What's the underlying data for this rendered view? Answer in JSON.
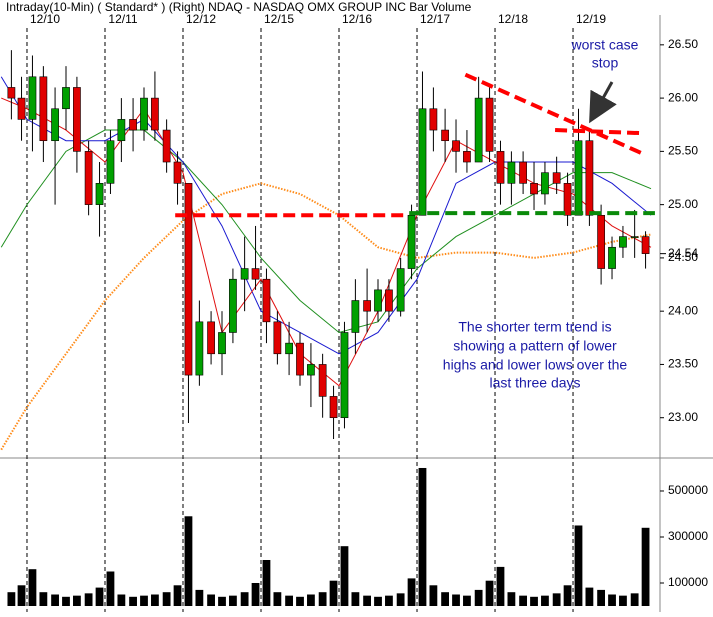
{
  "chart_data": [
    {
      "type": "candlestick",
      "title": "Intraday(10-Min) ( Standard* ) (Right) NDAQ - NASDAQ OMX GROUP INC Bar Volume",
      "xlim": [
        -0.346,
        8.115
      ],
      "xticks": [
        {
          "value": 0,
          "label": "12/10"
        },
        {
          "value": 1,
          "label": "12/11"
        },
        {
          "value": 2,
          "label": "12/12"
        },
        {
          "value": 3,
          "label": "12/15"
        },
        {
          "value": 4,
          "label": "12/16"
        },
        {
          "value": 5,
          "label": "12/17"
        },
        {
          "value": 6,
          "label": "12/18"
        },
        {
          "value": 7,
          "label": "12/19"
        }
      ],
      "ylim": [
        22.65,
        26.78
      ],
      "yticks": [
        {
          "value": 23,
          "label": "23.00"
        },
        {
          "value": 23.5,
          "label": "23.50"
        },
        {
          "value": 24,
          "label": "24.00"
        },
        {
          "value": 24.5,
          "label": "24.50"
        },
        {
          "value": 25,
          "label": "25.00"
        },
        {
          "value": 25.5,
          "label": "25.50"
        },
        {
          "value": 26,
          "label": "26.00"
        },
        {
          "value": 26.5,
          "label": "26.50"
        }
      ],
      "last_price": 24.54,
      "up_color": "#00a000",
      "down_color": "#e00000",
      "candles": {
        "x": [
          -0.2,
          -0.07,
          0.07,
          0.21,
          0.36,
          0.5,
          0.64,
          0.79,
          0.93,
          1.07,
          1.21,
          1.36,
          1.5,
          1.64,
          1.79,
          1.93,
          2.07,
          2.21,
          2.36,
          2.5,
          2.64,
          2.79,
          2.93,
          3.07,
          3.21,
          3.36,
          3.5,
          3.64,
          3.79,
          3.93,
          4.07,
          4.21,
          4.36,
          4.5,
          4.64,
          4.79,
          4.93,
          5.07,
          5.21,
          5.36,
          5.5,
          5.64,
          5.79,
          5.93,
          6.07,
          6.21,
          6.36,
          6.5,
          6.64,
          6.79,
          6.93,
          7.07,
          7.21,
          7.36,
          7.5,
          7.64,
          7.79,
          7.93
        ],
        "open": [
          26.1,
          26.0,
          25.8,
          26.2,
          25.6,
          25.9,
          26.1,
          25.5,
          25.0,
          25.2,
          25.6,
          25.8,
          25.7,
          26.0,
          25.7,
          25.4,
          25.2,
          23.4,
          23.9,
          23.6,
          23.8,
          24.3,
          24.4,
          24.3,
          23.9,
          23.6,
          23.7,
          23.4,
          23.5,
          23.2,
          23.0,
          23.8,
          24.1,
          24.0,
          24.2,
          24.0,
          24.4,
          24.9,
          25.9,
          25.7,
          25.6,
          25.5,
          25.4,
          26.0,
          25.5,
          25.2,
          25.4,
          25.2,
          25.1,
          25.3,
          25.2,
          24.9,
          25.6,
          24.9,
          24.4,
          24.6,
          24.7,
          24.7
        ],
        "high": [
          26.45,
          26.2,
          26.4,
          26.3,
          26.1,
          26.3,
          26.2,
          25.6,
          25.4,
          25.7,
          26.0,
          26.0,
          26.1,
          26.25,
          25.8,
          25.5,
          25.2,
          24.1,
          24.0,
          24.0,
          24.4,
          24.7,
          24.8,
          24.4,
          24.0,
          23.9,
          23.8,
          23.7,
          23.6,
          23.3,
          23.9,
          24.3,
          24.4,
          24.3,
          24.3,
          24.5,
          25.0,
          26.25,
          26.1,
          25.9,
          25.8,
          25.7,
          26.2,
          26.1,
          25.6,
          25.5,
          25.5,
          25.4,
          25.4,
          25.45,
          25.3,
          25.9,
          25.7,
          25.0,
          24.7,
          24.8,
          24.95,
          24.75
        ],
        "low": [
          25.8,
          25.6,
          25.5,
          25.4,
          25.0,
          25.7,
          25.3,
          24.9,
          24.7,
          25.1,
          25.4,
          25.5,
          25.6,
          25.6,
          25.3,
          25.0,
          22.95,
          23.3,
          23.5,
          23.4,
          23.7,
          24.0,
          24.2,
          23.7,
          23.5,
          23.4,
          23.3,
          23.1,
          23.0,
          22.8,
          22.9,
          23.6,
          23.8,
          23.9,
          23.9,
          23.95,
          24.3,
          24.9,
          25.5,
          25.4,
          25.3,
          25.3,
          25.4,
          25.4,
          25.0,
          25.0,
          25.1,
          24.95,
          25.0,
          25.1,
          24.8,
          24.9,
          24.8,
          24.25,
          24.3,
          24.5,
          24.5,
          24.4
        ],
        "close": [
          26.0,
          25.8,
          26.2,
          25.6,
          25.9,
          26.1,
          25.5,
          25.0,
          25.2,
          25.6,
          25.8,
          25.7,
          26.0,
          25.7,
          25.4,
          25.2,
          23.4,
          23.9,
          23.6,
          23.8,
          24.3,
          24.4,
          24.3,
          23.9,
          23.6,
          23.7,
          23.4,
          23.5,
          23.2,
          23.0,
          23.8,
          24.1,
          24.0,
          24.2,
          24.0,
          24.4,
          24.9,
          25.9,
          25.7,
          25.6,
          25.5,
          25.4,
          26.0,
          25.5,
          25.2,
          25.4,
          25.2,
          25.1,
          25.3,
          25.2,
          24.9,
          25.6,
          24.9,
          24.4,
          24.6,
          24.7,
          24.7,
          24.54
        ]
      },
      "series": [
        {
          "color": "#ff8c1a",
          "dotted": true,
          "x": [
            -0.33,
            0,
            0.5,
            1,
            1.5,
            2,
            2.5,
            3,
            3.5,
            4,
            4.5,
            5,
            5.5,
            6,
            6.5,
            7,
            7.5,
            8
          ],
          "values": [
            22.7,
            23.1,
            23.6,
            24.1,
            24.5,
            24.85,
            25.1,
            25.2,
            25.1,
            24.9,
            24.6,
            24.5,
            24.55,
            24.55,
            24.5,
            24.55,
            24.65,
            24.72
          ]
        },
        {
          "color": "#1f8f1f",
          "x": [
            -0.33,
            0,
            0.5,
            1,
            1.5,
            2,
            2.5,
            3,
            3.5,
            4,
            4.5,
            5,
            5.5,
            6,
            6.5,
            7,
            7.5,
            8
          ],
          "values": [
            24.6,
            25.0,
            25.5,
            25.7,
            25.7,
            25.4,
            25.0,
            24.5,
            24.1,
            23.8,
            23.9,
            24.4,
            24.7,
            24.9,
            25.1,
            25.3,
            25.3,
            25.15
          ]
        },
        {
          "color": "#1a1ad0",
          "x": [
            -0.33,
            0,
            0.5,
            1,
            1.5,
            2,
            2.5,
            3,
            3.5,
            4,
            4.5,
            5,
            5.5,
            6,
            6.5,
            7,
            7.5,
            8
          ],
          "values": [
            26.2,
            25.8,
            25.6,
            25.6,
            25.8,
            25.4,
            24.8,
            24.0,
            23.8,
            23.6,
            23.8,
            24.3,
            25.2,
            25.4,
            25.4,
            25.4,
            25.2,
            24.9
          ]
        },
        {
          "color": "#e01010",
          "x": [
            -0.33,
            0,
            0.5,
            1,
            1.5,
            2,
            2.5,
            3,
            3.5,
            4,
            4.5,
            5,
            5.5,
            6,
            6.5,
            7,
            7.5,
            8
          ],
          "values": [
            26.0,
            25.9,
            25.7,
            25.4,
            25.9,
            25.3,
            23.8,
            24.3,
            23.6,
            23.3,
            24.0,
            24.9,
            25.6,
            25.4,
            25.2,
            25.1,
            24.8,
            24.6
          ]
        }
      ],
      "trendlines": [
        {
          "color": "#ff0000",
          "x": [
            1.9,
            4.85
          ],
          "y": [
            24.9,
            24.9
          ]
        },
        {
          "color": "#ff0000",
          "x": [
            5.62,
            7.92
          ],
          "y": [
            26.22,
            25.47
          ]
        },
        {
          "color": "#ff0000",
          "x": [
            6.77,
            7.92
          ],
          "y": [
            25.7,
            25.67
          ]
        },
        {
          "color": "#0a8a0a",
          "x": [
            4.9,
            8.05
          ],
          "y": [
            24.92,
            24.92
          ]
        }
      ],
      "annotations": [
        "worst case",
        "stop"
      ],
      "comment": [
        "The shorter term trend is",
        "showing a pattern of lower",
        "highs and lower lows over the",
        "last three days"
      ]
    },
    {
      "type": "bar",
      "color": "#000000",
      "ylim": [
        0,
        626000
      ],
      "yticks": [
        100000,
        300000,
        500000
      ],
      "x": [
        -0.2,
        -0.07,
        0.07,
        0.21,
        0.36,
        0.5,
        0.64,
        0.79,
        0.93,
        1.07,
        1.21,
        1.36,
        1.5,
        1.64,
        1.79,
        1.93,
        2.07,
        2.21,
        2.36,
        2.5,
        2.64,
        2.79,
        2.93,
        3.07,
        3.21,
        3.36,
        3.5,
        3.64,
        3.79,
        3.93,
        4.07,
        4.21,
        4.36,
        4.5,
        4.64,
        4.79,
        4.93,
        5.07,
        5.21,
        5.36,
        5.5,
        5.64,
        5.79,
        5.93,
        6.07,
        6.21,
        6.36,
        6.5,
        6.64,
        6.79,
        6.93,
        7.07,
        7.21,
        7.36,
        7.5,
        7.64,
        7.79,
        7.93
      ],
      "values": [
        60000,
        90000,
        160000,
        60000,
        50000,
        40000,
        45000,
        55000,
        80000,
        150000,
        50000,
        40000,
        45000,
        50000,
        60000,
        90000,
        390000,
        70000,
        50000,
        40000,
        45000,
        60000,
        100000,
        200000,
        60000,
        45000,
        40000,
        50000,
        60000,
        110000,
        260000,
        60000,
        45000,
        40000,
        45000,
        55000,
        120000,
        600000,
        90000,
        60000,
        50000,
        45000,
        70000,
        110000,
        170000,
        60000,
        45000,
        40000,
        45000,
        55000,
        90000,
        350000,
        80000,
        70000,
        50000,
        45000,
        55000,
        340000
      ]
    }
  ]
}
